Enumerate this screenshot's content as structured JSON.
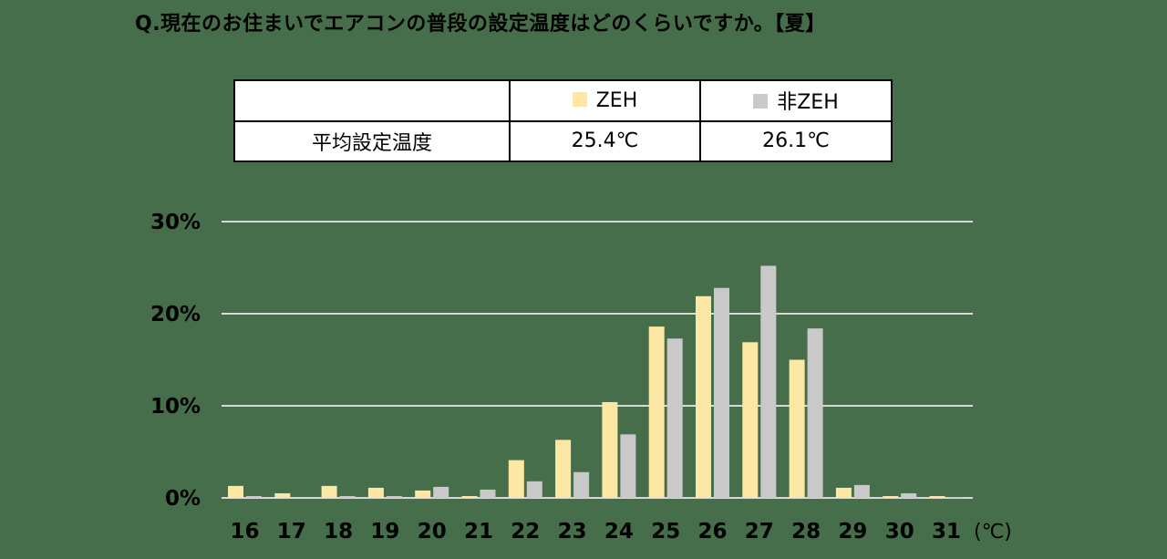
{
  "title": "Q.現在のお住まいでエアコンの普段の設定温度はどのくらいですか。【夏】",
  "summary_table": {
    "header_blank": "",
    "col_zeh": "ZEH",
    "col_non_zeh": "非ZEH",
    "row_label": "平均設定温度",
    "zeh_value": "25.4℃",
    "non_zeh_value": "26.1℃"
  },
  "colors": {
    "zeh": "#fce8a4",
    "non_zeh": "#c9c9c9",
    "grid": "#d8d8d8",
    "background": "#476e4a"
  },
  "chart_data": {
    "type": "bar",
    "title": "",
    "xlabel": "(℃)",
    "ylabel": "",
    "ylim": [
      0,
      30
    ],
    "yticks": [
      "0%",
      "10%",
      "20%",
      "30%"
    ],
    "categories": [
      "16",
      "17",
      "18",
      "19",
      "20",
      "21",
      "22",
      "23",
      "24",
      "25",
      "26",
      "27",
      "28",
      "29",
      "30",
      "31"
    ],
    "series": [
      {
        "name": "ZEH",
        "values": [
          1.3,
          0.5,
          1.3,
          1.1,
          0.8,
          0.2,
          4.1,
          6.3,
          10.4,
          18.6,
          21.9,
          16.9,
          15.0,
          1.1,
          0.2,
          0.2
        ]
      },
      {
        "name": "非ZEH",
        "values": [
          0.2,
          0.0,
          0.2,
          0.2,
          1.2,
          0.9,
          1.8,
          2.8,
          6.9,
          17.3,
          22.8,
          25.2,
          18.4,
          1.4,
          0.5,
          0.1
        ]
      }
    ],
    "grid": true,
    "legend_position": "top"
  }
}
